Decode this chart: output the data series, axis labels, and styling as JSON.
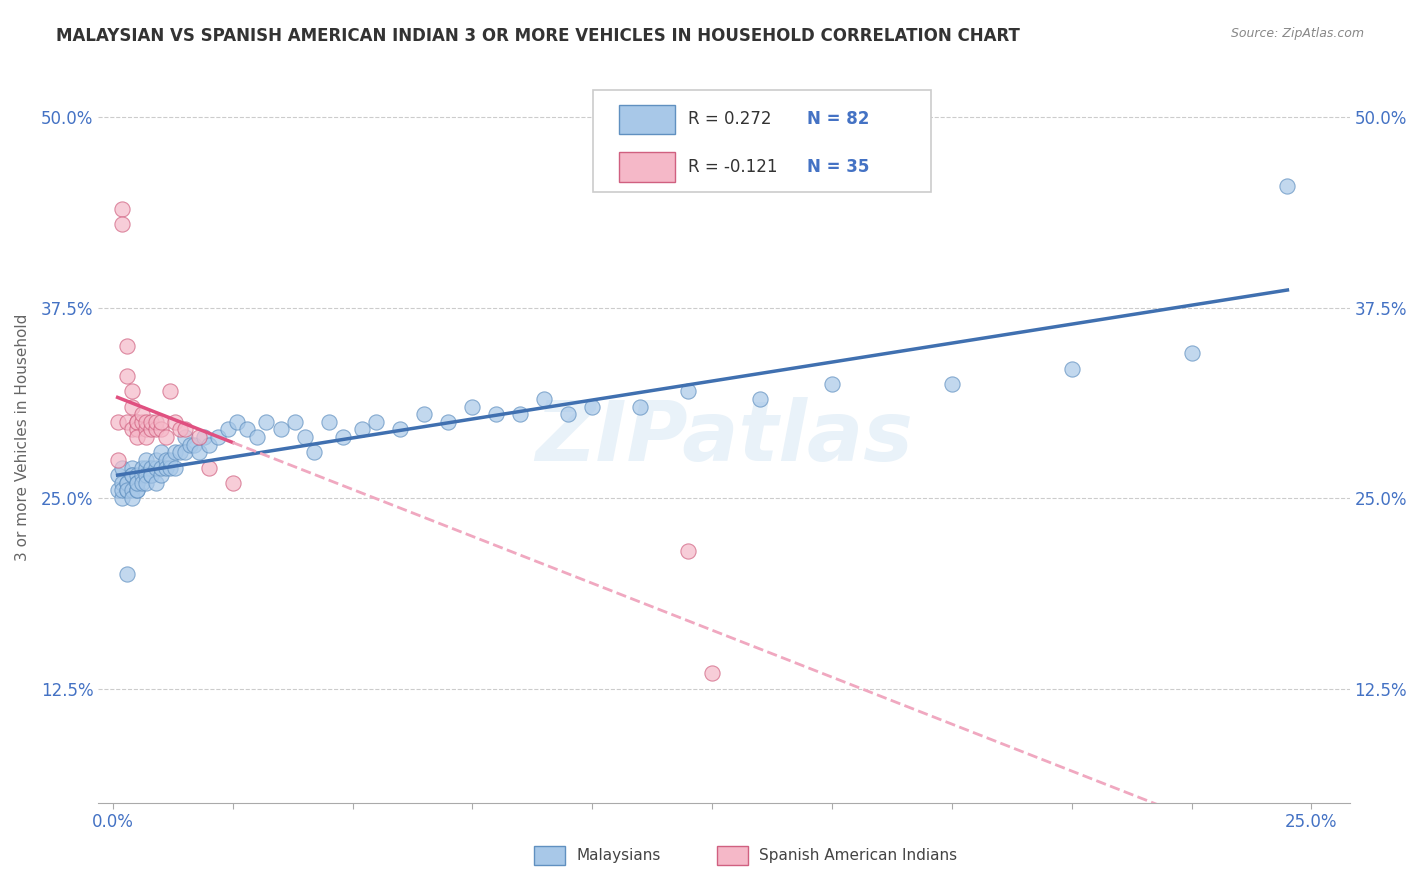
{
  "title": "MALAYSIAN VS SPANISH AMERICAN INDIAN 3 OR MORE VEHICLES IN HOUSEHOLD CORRELATION CHART",
  "source": "Source: ZipAtlas.com",
  "xlabel_ticks": [
    "0.0%",
    "",
    "",
    "",
    "",
    "",
    "",
    "",
    "",
    "",
    "25.0%"
  ],
  "xlabel_vals": [
    0.0,
    0.025,
    0.05,
    0.075,
    0.1,
    0.125,
    0.15,
    0.175,
    0.2,
    0.225,
    0.25
  ],
  "ylabel_ticks": [
    "12.5%",
    "25.0%",
    "37.5%",
    "50.0%"
  ],
  "ylabel_vals": [
    0.125,
    0.25,
    0.375,
    0.5
  ],
  "ylim": [
    0.05,
    0.53
  ],
  "xlim": [
    -0.003,
    0.258
  ],
  "color_blue": "#a8c8e8",
  "color_pink": "#f5b8c8",
  "edge_blue": "#6090c0",
  "edge_pink": "#d06080",
  "trendline_blue": "#4070b0",
  "trendline_pink": "#e05080",
  "trendline_pink_dashed": "#f0a8c0",
  "ylabel": "3 or more Vehicles in Household",
  "watermark": "ZIPatlas",
  "legend_bottom_label1": "Malaysians",
  "legend_bottom_label2": "Spanish American Indians",
  "scatter_blue_x": [
    0.001,
    0.001,
    0.002,
    0.002,
    0.002,
    0.002,
    0.003,
    0.003,
    0.003,
    0.003,
    0.003,
    0.004,
    0.004,
    0.004,
    0.004,
    0.004,
    0.005,
    0.005,
    0.005,
    0.005,
    0.005,
    0.006,
    0.006,
    0.006,
    0.007,
    0.007,
    0.007,
    0.007,
    0.008,
    0.008,
    0.008,
    0.009,
    0.009,
    0.009,
    0.01,
    0.01,
    0.01,
    0.011,
    0.011,
    0.012,
    0.012,
    0.013,
    0.013,
    0.014,
    0.015,
    0.015,
    0.016,
    0.017,
    0.018,
    0.019,
    0.02,
    0.022,
    0.024,
    0.026,
    0.028,
    0.03,
    0.032,
    0.035,
    0.038,
    0.04,
    0.042,
    0.045,
    0.048,
    0.052,
    0.055,
    0.06,
    0.065,
    0.07,
    0.075,
    0.08,
    0.085,
    0.09,
    0.095,
    0.1,
    0.11,
    0.12,
    0.135,
    0.15,
    0.175,
    0.2,
    0.225,
    0.245
  ],
  "scatter_blue_y": [
    0.265,
    0.255,
    0.27,
    0.26,
    0.25,
    0.255,
    0.255,
    0.26,
    0.26,
    0.255,
    0.2,
    0.27,
    0.265,
    0.255,
    0.25,
    0.265,
    0.265,
    0.255,
    0.26,
    0.255,
    0.26,
    0.265,
    0.26,
    0.27,
    0.27,
    0.265,
    0.26,
    0.275,
    0.27,
    0.265,
    0.265,
    0.27,
    0.275,
    0.26,
    0.28,
    0.265,
    0.27,
    0.275,
    0.27,
    0.27,
    0.275,
    0.28,
    0.27,
    0.28,
    0.29,
    0.28,
    0.285,
    0.285,
    0.28,
    0.29,
    0.285,
    0.29,
    0.295,
    0.3,
    0.295,
    0.29,
    0.3,
    0.295,
    0.3,
    0.29,
    0.28,
    0.3,
    0.29,
    0.295,
    0.3,
    0.295,
    0.305,
    0.3,
    0.31,
    0.305,
    0.305,
    0.315,
    0.305,
    0.31,
    0.31,
    0.32,
    0.315,
    0.325,
    0.325,
    0.335,
    0.345,
    0.455
  ],
  "scatter_pink_x": [
    0.001,
    0.001,
    0.002,
    0.002,
    0.003,
    0.003,
    0.003,
    0.004,
    0.004,
    0.004,
    0.005,
    0.005,
    0.005,
    0.005,
    0.006,
    0.006,
    0.007,
    0.007,
    0.007,
    0.008,
    0.008,
    0.009,
    0.009,
    0.01,
    0.01,
    0.011,
    0.012,
    0.013,
    0.014,
    0.015,
    0.018,
    0.02,
    0.025,
    0.12,
    0.125
  ],
  "scatter_pink_y": [
    0.3,
    0.275,
    0.44,
    0.43,
    0.35,
    0.33,
    0.3,
    0.32,
    0.31,
    0.295,
    0.3,
    0.295,
    0.3,
    0.29,
    0.3,
    0.305,
    0.295,
    0.3,
    0.29,
    0.295,
    0.3,
    0.295,
    0.3,
    0.295,
    0.3,
    0.29,
    0.32,
    0.3,
    0.295,
    0.295,
    0.29,
    0.27,
    0.26,
    0.215,
    0.135
  ]
}
